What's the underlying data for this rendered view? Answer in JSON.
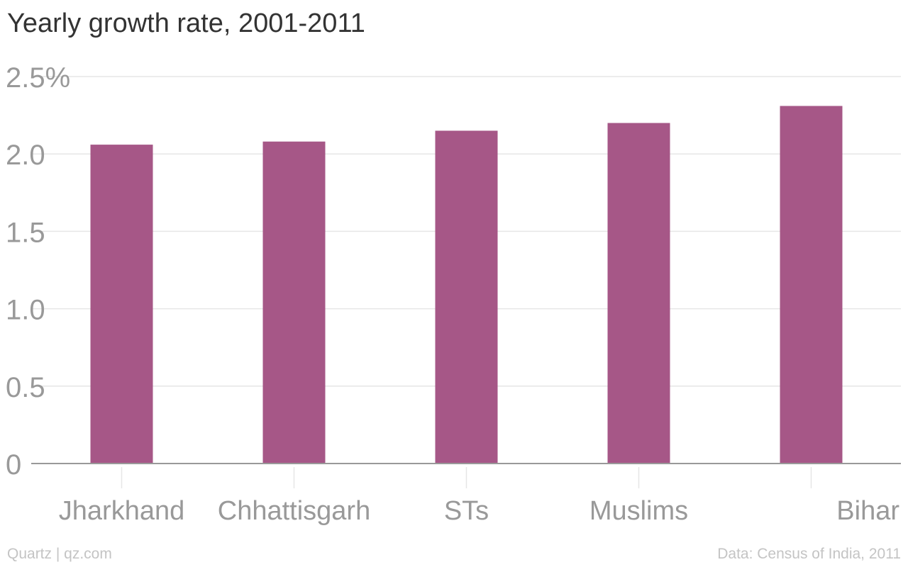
{
  "title": "Yearly growth rate, 2001-2011",
  "footer": {
    "left": "Quartz | qz.com",
    "right": "Data: Census of India, 2011"
  },
  "colors": {
    "bar": "#a65787",
    "grid": "#e6e6e6",
    "baseline": "#999999",
    "tick_label": "#999999",
    "title": "#333333",
    "footer": "#c4c4c4"
  },
  "chart_data": {
    "type": "bar",
    "title": "Yearly growth rate, 2001-2011",
    "xlabel": "",
    "ylabel": "",
    "categories": [
      "Jharkhand",
      "Chhattisgarh",
      "STs",
      "Muslims",
      "Bihar"
    ],
    "values": [
      2.06,
      2.08,
      2.15,
      2.2,
      2.31
    ],
    "ylim": [
      0,
      2.5
    ],
    "yticks": [
      0,
      0.5,
      1.0,
      1.5,
      2.0,
      2.5
    ],
    "ytick_labels": [
      "0",
      "0.5",
      "1.0",
      "1.5",
      "2.0",
      "2.5%"
    ],
    "grid": true,
    "legend": "none"
  }
}
